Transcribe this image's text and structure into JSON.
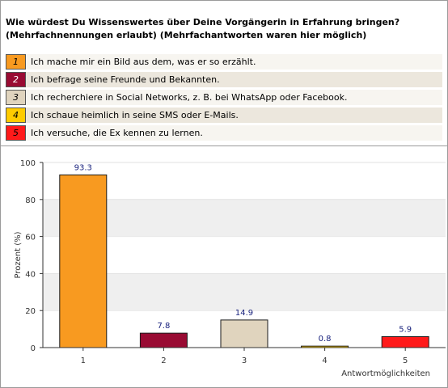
{
  "question": {
    "line1": "Wie würdest Du Wissenswertes über Deine Vorgängerin in Erfahrung bringen?",
    "line2": "(Mehrfachnennungen erlaubt) (Mehrfachantworten waren hier möglich)"
  },
  "legend": [
    {
      "num": "1",
      "label": "Ich mache mir ein Bild aus dem, was er so erzählt.",
      "color": "#f89a20",
      "numColor": "#000000"
    },
    {
      "num": "2",
      "label": "Ich befrage seine Freunde und Bekannten.",
      "color": "#990b33",
      "numColor": "#ffffff"
    },
    {
      "num": "3",
      "label": "Ich recherchiere in Social Networks, z. B. bei WhatsApp oder Facebook.",
      "color": "#e0d4be",
      "numColor": "#000000"
    },
    {
      "num": "4",
      "label": "Ich schaue heimlich in seine SMS oder E-Mails.",
      "color": "#ffcc00",
      "numColor": "#000000"
    },
    {
      "num": "5",
      "label": "Ich versuche, die Ex kennen zu lernen.",
      "color": "#ff1a1a",
      "numColor": "#000000"
    }
  ],
  "chart_data": {
    "type": "bar",
    "categories": [
      "1",
      "2",
      "3",
      "4",
      "5"
    ],
    "values": [
      93.3,
      7.8,
      14.9,
      0.8,
      5.9
    ],
    "value_labels": [
      "93.3",
      "7.8",
      "14.9",
      "0.8",
      "5.9"
    ],
    "bar_colors": [
      "#f89a20",
      "#990b33",
      "#e0d4be",
      "#ffcc00",
      "#ff1a1a"
    ],
    "ylabel": "Prozent (%)",
    "xlabel": "Antwortmöglichkeiten",
    "ylim": [
      0,
      100
    ],
    "yticks": [
      0,
      20,
      40,
      60,
      80,
      100
    ],
    "grid": true
  }
}
